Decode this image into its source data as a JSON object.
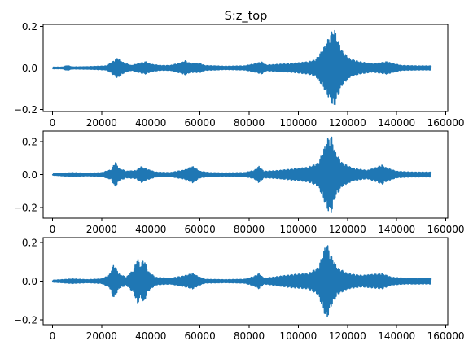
{
  "figure": {
    "title": "S:z_top",
    "background": "#ffffff",
    "line_color": "#1f77b4"
  },
  "chart_data": [
    {
      "type": "line",
      "title": "S:z_top",
      "xlim": [
        -3800,
        160800
      ],
      "ylim": [
        -0.21,
        0.21
      ],
      "xticks": [
        0,
        20000,
        40000,
        60000,
        80000,
        100000,
        120000,
        140000,
        160000
      ],
      "xtick_labels": [
        "0",
        "20000",
        "40000",
        "60000",
        "80000",
        "100000",
        "120000",
        "140000",
        "160000"
      ],
      "yticks": [
        -0.2,
        0.0,
        0.2
      ],
      "ytick_labels": [
        "−0.2",
        "0.0",
        "0.2"
      ],
      "series": [
        {
          "envelope": [
            [
              0,
              0.004
            ],
            [
              4000,
              0.004
            ],
            [
              6000,
              0.012
            ],
            [
              8000,
              0.005
            ],
            [
              14000,
              0.006
            ],
            [
              18000,
              0.008
            ],
            [
              22000,
              0.01
            ],
            [
              25000,
              0.035
            ],
            [
              26500,
              0.05
            ],
            [
              29000,
              0.025
            ],
            [
              32000,
              0.012
            ],
            [
              36000,
              0.025
            ],
            [
              38000,
              0.03
            ],
            [
              40000,
              0.018
            ],
            [
              44000,
              0.012
            ],
            [
              48000,
              0.012
            ],
            [
              52000,
              0.025
            ],
            [
              54000,
              0.035
            ],
            [
              56000,
              0.022
            ],
            [
              60000,
              0.022
            ],
            [
              62000,
              0.012
            ],
            [
              70000,
              0.008
            ],
            [
              78000,
              0.01
            ],
            [
              83000,
              0.022
            ],
            [
              85000,
              0.03
            ],
            [
              87000,
              0.014
            ],
            [
              92000,
              0.018
            ],
            [
              96000,
              0.02
            ],
            [
              100000,
              0.025
            ],
            [
              104000,
              0.03
            ],
            [
              107000,
              0.04
            ],
            [
              110000,
              0.09
            ],
            [
              113000,
              0.16
            ],
            [
              114500,
              0.195
            ],
            [
              116000,
              0.14
            ],
            [
              118000,
              0.08
            ],
            [
              121000,
              0.045
            ],
            [
              125000,
              0.03
            ],
            [
              130000,
              0.02
            ],
            [
              133000,
              0.025
            ],
            [
              136000,
              0.03
            ],
            [
              139000,
              0.02
            ],
            [
              142000,
              0.012
            ],
            [
              148000,
              0.01
            ],
            [
              154000,
              0.01
            ]
          ]
        }
      ]
    },
    {
      "type": "line",
      "title": "",
      "xlim": [
        -3800,
        160800
      ],
      "ylim": [
        -0.265,
        0.265
      ],
      "xticks": [
        0,
        20000,
        40000,
        60000,
        80000,
        100000,
        120000,
        140000,
        160000
      ],
      "xtick_labels": [
        "0",
        "20000",
        "40000",
        "60000",
        "80000",
        "100000",
        "120000",
        "140000",
        "160000"
      ],
      "yticks": [
        -0.2,
        0.0,
        0.2
      ],
      "ytick_labels": [
        "−0.2",
        "0.0",
        "0.2"
      ],
      "series": [
        {
          "envelope": [
            [
              0,
              0.004
            ],
            [
              4000,
              0.008
            ],
            [
              8000,
              0.012
            ],
            [
              14000,
              0.008
            ],
            [
              20000,
              0.012
            ],
            [
              24000,
              0.03
            ],
            [
              25500,
              0.08
            ],
            [
              27000,
              0.04
            ],
            [
              30000,
              0.02
            ],
            [
              34000,
              0.025
            ],
            [
              36000,
              0.05
            ],
            [
              38000,
              0.035
            ],
            [
              42000,
              0.015
            ],
            [
              48000,
              0.012
            ],
            [
              54000,
              0.03
            ],
            [
              57000,
              0.05
            ],
            [
              60000,
              0.02
            ],
            [
              64000,
              0.012
            ],
            [
              70000,
              0.01
            ],
            [
              78000,
              0.012
            ],
            [
              82000,
              0.025
            ],
            [
              84000,
              0.05
            ],
            [
              86000,
              0.02
            ],
            [
              92000,
              0.025
            ],
            [
              98000,
              0.035
            ],
            [
              104000,
              0.045
            ],
            [
              108000,
              0.07
            ],
            [
              110000,
              0.14
            ],
            [
              112000,
              0.22
            ],
            [
              113500,
              0.235
            ],
            [
              115000,
              0.14
            ],
            [
              118000,
              0.07
            ],
            [
              122000,
              0.04
            ],
            [
              128000,
              0.025
            ],
            [
              132000,
              0.045
            ],
            [
              134000,
              0.06
            ],
            [
              136000,
              0.04
            ],
            [
              140000,
              0.02
            ],
            [
              146000,
              0.015
            ],
            [
              154000,
              0.015
            ]
          ]
        }
      ]
    },
    {
      "type": "line",
      "title": "",
      "xlim": [
        -3800,
        160800
      ],
      "ylim": [
        -0.225,
        0.225
      ],
      "xticks": [
        0,
        20000,
        40000,
        60000,
        80000,
        100000,
        120000,
        140000,
        160000
      ],
      "xtick_labels": [
        "0",
        "20000",
        "40000",
        "60000",
        "80000",
        "100000",
        "120000",
        "140000",
        "160000"
      ],
      "yticks": [
        -0.2,
        0.0,
        0.2
      ],
      "ytick_labels": [
        "−0.2",
        "0.0",
        "0.2"
      ],
      "series": [
        {
          "envelope": [
            [
              0,
              0.005
            ],
            [
              4000,
              0.008
            ],
            [
              8000,
              0.012
            ],
            [
              14000,
              0.008
            ],
            [
              20000,
              0.012
            ],
            [
              23000,
              0.03
            ],
            [
              25000,
              0.09
            ],
            [
              27000,
              0.04
            ],
            [
              30000,
              0.02
            ],
            [
              33000,
              0.06
            ],
            [
              34500,
              0.12
            ],
            [
              36000,
              0.08
            ],
            [
              37000,
              0.12
            ],
            [
              39000,
              0.05
            ],
            [
              42000,
              0.02
            ],
            [
              48000,
              0.015
            ],
            [
              54000,
              0.03
            ],
            [
              57000,
              0.04
            ],
            [
              60000,
              0.02
            ],
            [
              62000,
              0.01
            ],
            [
              70000,
              0.008
            ],
            [
              78000,
              0.01
            ],
            [
              82000,
              0.025
            ],
            [
              84000,
              0.04
            ],
            [
              86000,
              0.015
            ],
            [
              92000,
              0.025
            ],
            [
              98000,
              0.035
            ],
            [
              104000,
              0.04
            ],
            [
              108000,
              0.07
            ],
            [
              110000,
              0.14
            ],
            [
              111500,
              0.205
            ],
            [
              113000,
              0.14
            ],
            [
              116000,
              0.07
            ],
            [
              120000,
              0.04
            ],
            [
              126000,
              0.03
            ],
            [
              130000,
              0.035
            ],
            [
              134000,
              0.04
            ],
            [
              138000,
              0.02
            ],
            [
              144000,
              0.015
            ],
            [
              154000,
              0.015
            ]
          ]
        }
      ]
    }
  ]
}
